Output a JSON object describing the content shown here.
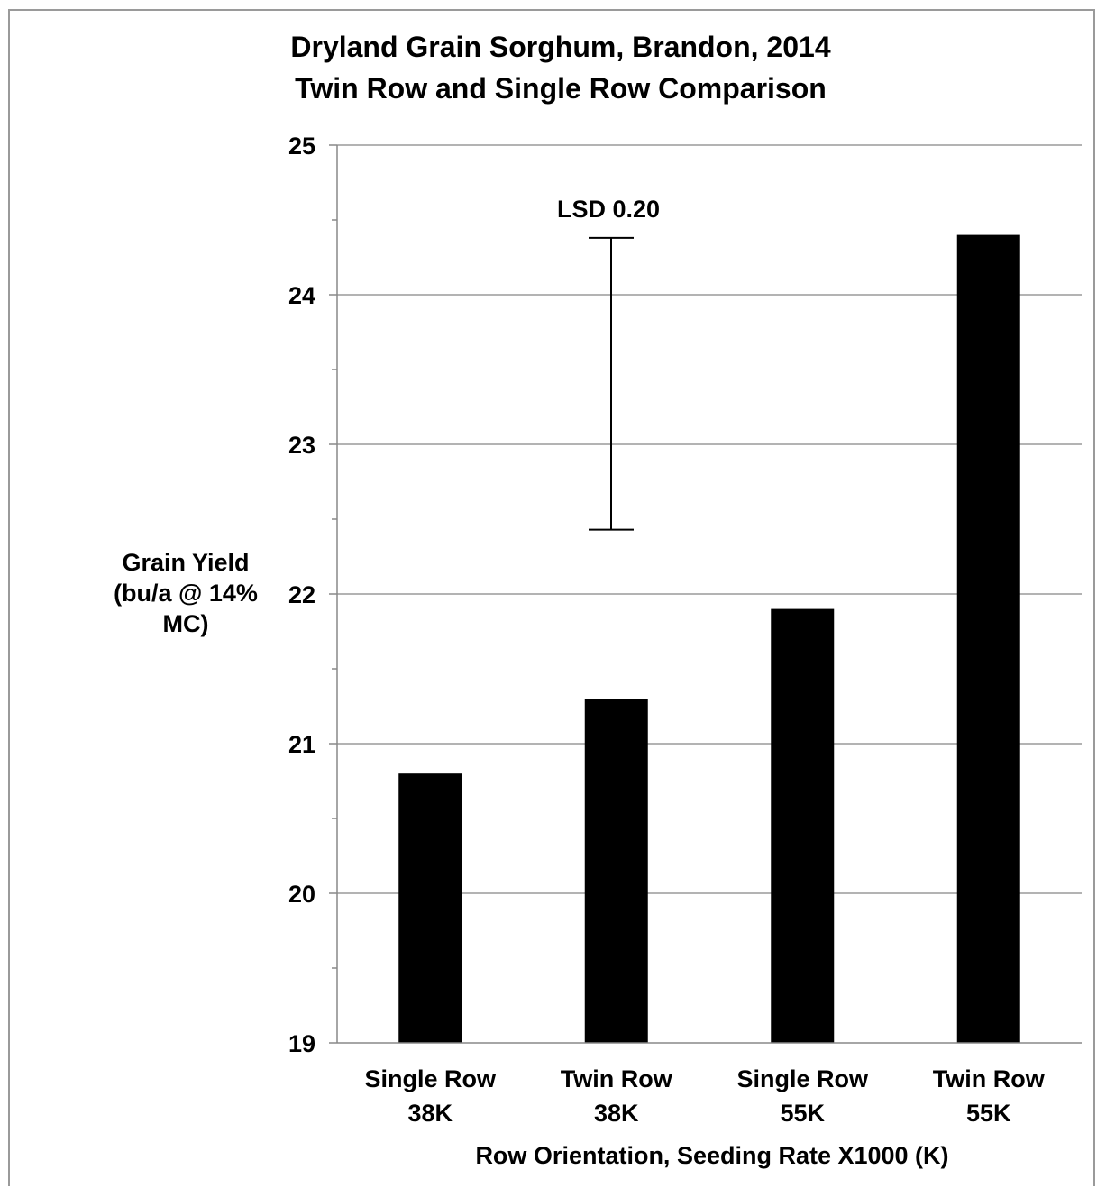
{
  "chart_data": {
    "type": "bar",
    "title": [
      "Dryland Grain Sorghum, Brandon, 2014",
      "Twin Row and Single Row Comparison"
    ],
    "categories": [
      [
        "Single Row",
        "38K"
      ],
      [
        "Twin Row",
        "38K"
      ],
      [
        "Single Row",
        "55K"
      ],
      [
        "Twin Row",
        "55K"
      ]
    ],
    "values": [
      20.8,
      21.3,
      21.9,
      24.4
    ],
    "xlabel": "Row Orientation, Seeding Rate X1000 (K)",
    "ylabel": [
      "Grain Yield",
      "(bu/a @ 14%",
      "MC)"
    ],
    "ylim": [
      19,
      25
    ],
    "yticks": [
      19,
      20,
      21,
      22,
      23,
      24,
      25
    ],
    "minor_tick_step": 0.5,
    "grid": true,
    "legend": "none",
    "bar_color": "#000000",
    "gridline_color": "#9a9a9a",
    "annotation": {
      "label": "LSD  0.20",
      "error_bar_range": [
        22.43,
        24.38
      ]
    }
  }
}
